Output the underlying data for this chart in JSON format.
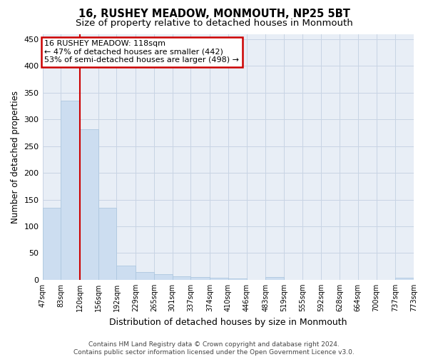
{
  "title": "16, RUSHEY MEADOW, MONMOUTH, NP25 5BT",
  "subtitle": "Size of property relative to detached houses in Monmouth",
  "xlabel": "Distribution of detached houses by size in Monmouth",
  "ylabel": "Number of detached properties",
  "footer_line1": "Contains HM Land Registry data © Crown copyright and database right 2024.",
  "footer_line2": "Contains public sector information licensed under the Open Government Licence v3.0.",
  "annotation_line1": "16 RUSHEY MEADOW: 118sqm",
  "annotation_line2": "← 47% of detached houses are smaller (442)",
  "annotation_line3": "53% of semi-detached houses are larger (498) →",
  "bar_edges": [
    47,
    83,
    120,
    156,
    192,
    229,
    265,
    301,
    337,
    374,
    410,
    446,
    483,
    519,
    555,
    592,
    628,
    664,
    700,
    737,
    773
  ],
  "bar_heights": [
    135,
    335,
    282,
    135,
    27,
    15,
    11,
    6,
    5,
    4,
    3,
    0,
    5,
    0,
    0,
    0,
    0,
    0,
    0,
    4
  ],
  "tick_labels": [
    "47sqm",
    "83sqm",
    "120sqm",
    "156sqm",
    "192sqm",
    "229sqm",
    "265sqm",
    "301sqm",
    "337sqm",
    "374sqm",
    "410sqm",
    "446sqm",
    "483sqm",
    "519sqm",
    "555sqm",
    "592sqm",
    "628sqm",
    "664sqm",
    "700sqm",
    "737sqm",
    "773sqm"
  ],
  "bar_color": "#ccddf0",
  "bar_edge_color": "#aec8e0",
  "vline_color": "#cc0000",
  "vline_x": 120,
  "ylim": [
    0,
    460
  ],
  "xlim": [
    47,
    773
  ],
  "grid_color": "#c8d4e4",
  "bg_color": "#e8eef6",
  "annotation_box_facecolor": "#ffffff",
  "annotation_box_edgecolor": "#cc0000",
  "title_fontsize": 10.5,
  "subtitle_fontsize": 9.5,
  "tick_fontsize": 7,
  "ylabel_fontsize": 8.5,
  "xlabel_fontsize": 9,
  "annotation_fontsize": 8,
  "footer_fontsize": 6.5,
  "yticks": [
    0,
    50,
    100,
    150,
    200,
    250,
    300,
    350,
    400,
    450
  ]
}
